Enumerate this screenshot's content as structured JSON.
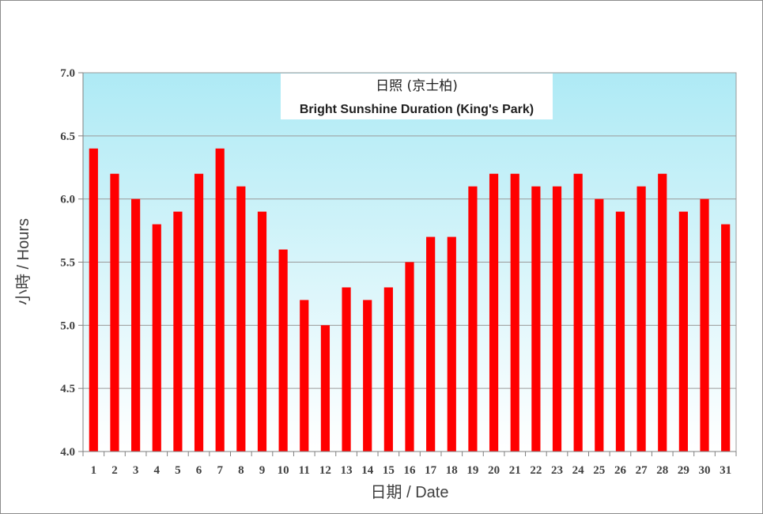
{
  "chart_data": {
    "type": "bar",
    "title": "日照 (京士柏)",
    "subtitle": "Bright Sunshine Duration (King's Park)",
    "xlabel": "日期 / Date",
    "ylabel": "小時 / Hours",
    "ylim": [
      4.0,
      7.0
    ],
    "yticks": [
      "4.0",
      "4.5",
      "5.0",
      "5.5",
      "6.0",
      "6.5",
      "7.0"
    ],
    "categories": [
      "1",
      "2",
      "3",
      "4",
      "5",
      "6",
      "7",
      "8",
      "9",
      "10",
      "11",
      "12",
      "13",
      "14",
      "15",
      "16",
      "17",
      "18",
      "19",
      "20",
      "21",
      "22",
      "23",
      "24",
      "25",
      "26",
      "27",
      "28",
      "29",
      "30",
      "31"
    ],
    "values": [
      6.4,
      6.2,
      6.0,
      5.8,
      5.9,
      6.2,
      6.4,
      6.1,
      5.9,
      5.6,
      5.2,
      5.0,
      5.3,
      5.2,
      5.3,
      5.5,
      5.7,
      5.7,
      6.1,
      6.2,
      6.2,
      6.1,
      6.1,
      6.2,
      6.0,
      5.9,
      6.1,
      6.2,
      5.9,
      6.0,
      5.8
    ],
    "bar_color": "#ff0000",
    "plot_background_top": "#aeeaf5",
    "plot_background_bottom": "#ffffff",
    "grid": true,
    "legend": "none"
  }
}
